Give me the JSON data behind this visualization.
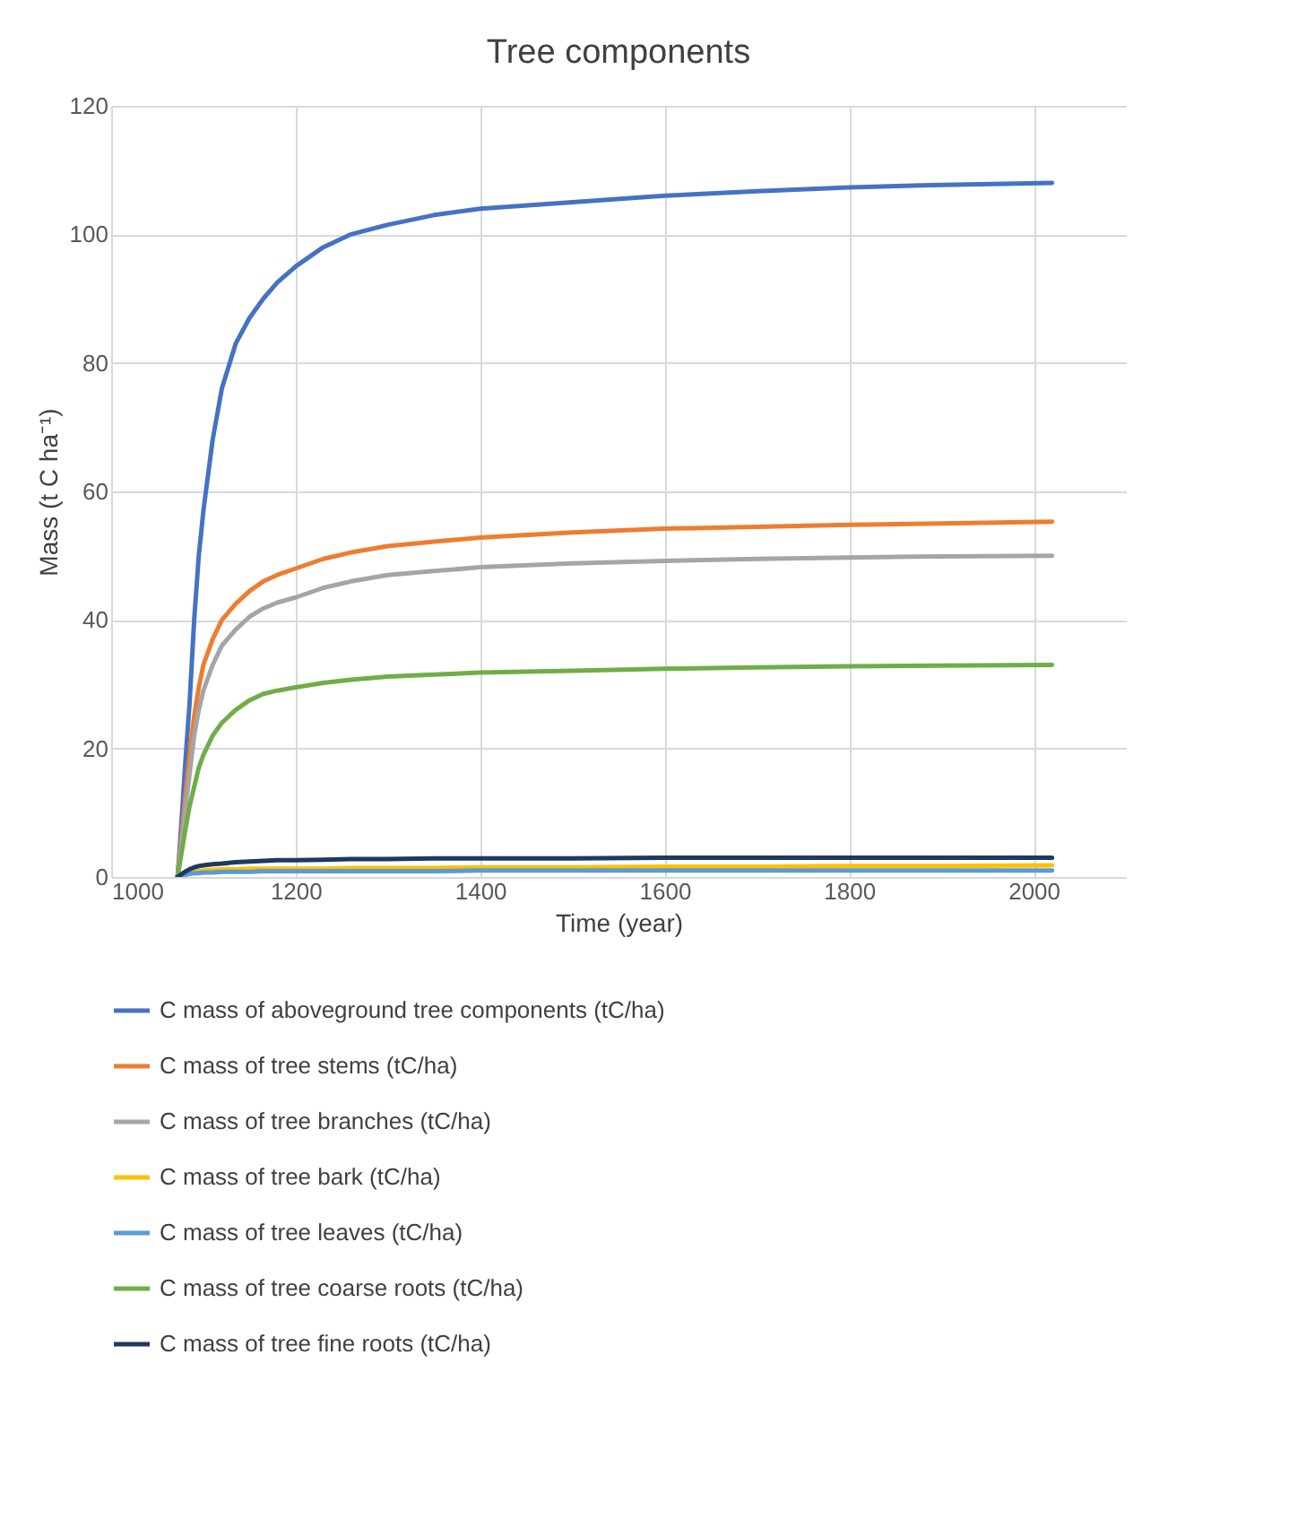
{
  "chart_data": {
    "type": "line",
    "title": "Tree components",
    "xlabel": "Time (year)",
    "ylabel": "Mass (t C ha⁻¹)",
    "x": [
      1072,
      1076,
      1080,
      1085,
      1090,
      1095,
      1100,
      1110,
      1120,
      1135,
      1150,
      1165,
      1180,
      1200,
      1230,
      1260,
      1300,
      1350,
      1400,
      1500,
      1600,
      1700,
      1800,
      1900,
      2020
    ],
    "series": [
      {
        "name": "C mass of aboveground tree components  (tC/ha)",
        "color": "#4472c4",
        "values": [
          0,
          8,
          17,
          27,
          40,
          50,
          57,
          68,
          76,
          83,
          87,
          90,
          92.5,
          95,
          98,
          100,
          101.5,
          103,
          104,
          105,
          106,
          106.7,
          107.3,
          107.7,
          108
        ]
      },
      {
        "name": "C mass of tree stems  (tC/ha)",
        "color": "#ed7d31",
        "values": [
          0,
          6,
          12,
          19,
          25,
          29.5,
          33,
          37,
          40,
          42.5,
          44.5,
          46,
          47,
          48,
          49.5,
          50.5,
          51.5,
          52.2,
          52.8,
          53.6,
          54.2,
          54.5,
          54.8,
          55,
          55.3
        ]
      },
      {
        "name": "C mass of tree branches  (tC/ha)",
        "color": "#a5a5a5",
        "values": [
          0,
          5,
          10,
          16,
          22,
          26,
          29,
          33,
          36,
          38.5,
          40.5,
          41.8,
          42.7,
          43.5,
          45,
          46,
          47,
          47.6,
          48.2,
          48.8,
          49.2,
          49.5,
          49.7,
          49.9,
          50
        ]
      },
      {
        "name": "C mass of tree bark  (tC/ha)",
        "color": "#ffc000",
        "values": [
          null,
          null,
          0.4,
          0.6,
          0.8,
          0.9,
          1,
          1.1,
          1.2,
          1.2,
          1.3,
          1.3,
          1.3,
          1.3,
          1.3,
          1.4,
          1.4,
          1.4,
          1.5,
          1.5,
          1.6,
          1.6,
          1.7,
          1.7,
          1.8
        ]
      },
      {
        "name": "C mass of tree leaves  (tC/ha)",
        "color": "#5b9bd5",
        "values": [
          0,
          0.2,
          0.3,
          0.5,
          0.6,
          0.6,
          0.7,
          0.7,
          0.8,
          0.8,
          0.8,
          0.9,
          0.9,
          0.9,
          0.9,
          0.9,
          0.9,
          0.9,
          1,
          1,
          1,
          1,
          1,
          1,
          1
        ]
      },
      {
        "name": "C mass of tree coarse roots  (tC/ha)",
        "color": "#70ad47",
        "values": [
          0,
          3.5,
          7,
          11,
          14,
          17,
          19,
          22,
          24,
          26,
          27.5,
          28.5,
          29,
          29.5,
          30.2,
          30.7,
          31.2,
          31.5,
          31.8,
          32.1,
          32.4,
          32.6,
          32.8,
          32.9,
          33
        ]
      },
      {
        "name": "C mass of tree fine roots  (tC/ha)",
        "color": "#1f3864",
        "values": [
          0,
          0.4,
          0.8,
          1.2,
          1.5,
          1.7,
          1.8,
          2,
          2.1,
          2.3,
          2.4,
          2.5,
          2.6,
          2.6,
          2.7,
          2.8,
          2.8,
          2.9,
          2.9,
          2.9,
          3,
          3,
          3,
          3,
          3
        ]
      }
    ],
    "xlim": [
      1000,
      2100
    ],
    "xticks": [
      1000,
      1200,
      1400,
      1600,
      1800,
      2000
    ],
    "ylim": [
      0,
      120
    ],
    "yticks": [
      0,
      20,
      40,
      60,
      80,
      100,
      120
    ],
    "grid": true,
    "legend": "bottom"
  }
}
